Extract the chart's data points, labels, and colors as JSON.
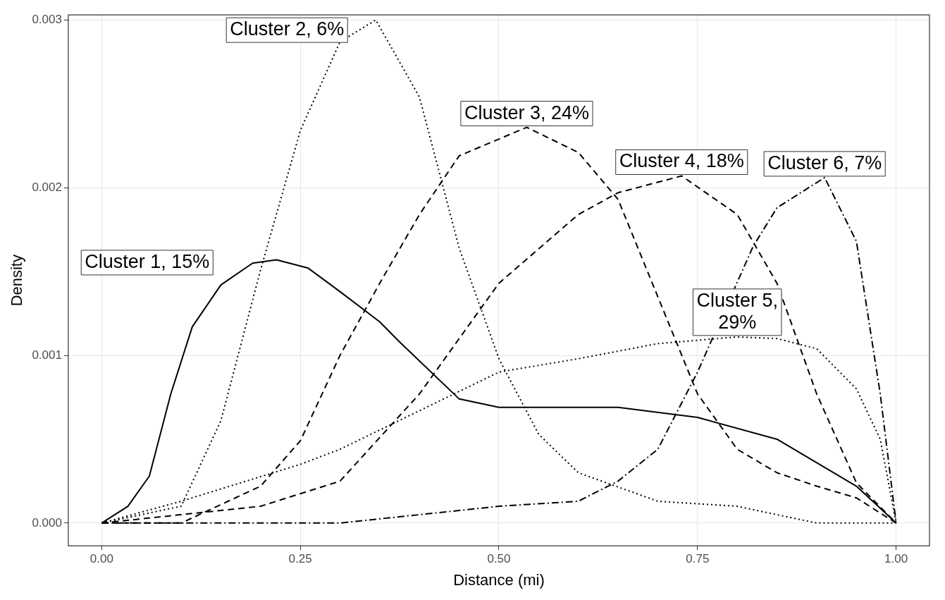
{
  "chart_data": {
    "type": "line",
    "xlabel": "Distance (mi)",
    "ylabel": "Density",
    "xlim": [
      -0.042,
      1.042
    ],
    "ylim": [
      -0.000136,
      0.00303
    ],
    "xticks": [
      {
        "value": 0,
        "label": "0.00"
      },
      {
        "value": 0.25,
        "label": "0.25"
      },
      {
        "value": 0.5,
        "label": "0.50"
      },
      {
        "value": 0.75,
        "label": "0.75"
      },
      {
        "value": 1,
        "label": "1.00"
      }
    ],
    "yticks": [
      {
        "value": 0,
        "label": "0.000"
      },
      {
        "value": 0.001,
        "label": "0.001"
      },
      {
        "value": 0.002,
        "label": "0.002"
      },
      {
        "value": 0.003,
        "label": "0.003"
      }
    ],
    "grid": true,
    "marker": "none",
    "legend": false,
    "series": [
      {
        "name": "Cluster 1, 15%",
        "color": "#000000",
        "line_style": "solid",
        "x": [
          0,
          0.033,
          0.06,
          0.087,
          0.114,
          0.15,
          0.19,
          0.22,
          0.26,
          0.3,
          0.35,
          0.375,
          0.45,
          0.5,
          0.6,
          0.65,
          0.75,
          0.85,
          0.95,
          1
        ],
        "values": [
          0,
          0.0001,
          0.00028,
          0.00077,
          0.00117,
          0.00142,
          0.00155,
          0.00157,
          0.00152,
          0.00138,
          0.0012,
          0.00108,
          0.00074,
          0.00069,
          0.00069,
          0.00069,
          0.00063,
          0.0005,
          0.00022,
          0
        ]
      },
      {
        "name": "Cluster 2, 6%",
        "color": "#000000",
        "line_style": "dotted",
        "x": [
          0,
          0.1,
          0.15,
          0.2,
          0.25,
          0.3,
          0.345,
          0.4,
          0.45,
          0.5,
          0.55,
          0.6,
          0.7,
          0.8,
          0.9,
          1
        ],
        "values": [
          0,
          0.0001,
          0.00061,
          0.00151,
          0.00234,
          0.00287,
          0.003,
          0.00254,
          0.00164,
          0.00098,
          0.00053,
          0.0003,
          0.00013,
          0.0001,
          0,
          0
        ]
      },
      {
        "name": "Cluster 3, 24%",
        "color": "#000000",
        "line_style": "dashed",
        "x": [
          0,
          0.1,
          0.2,
          0.25,
          0.3,
          0.35,
          0.4,
          0.45,
          0.535,
          0.6,
          0.65,
          0.7,
          0.75,
          0.8,
          0.85,
          0.9,
          0.95,
          1
        ],
        "values": [
          0,
          0,
          0.00022,
          0.00049,
          0.001,
          0.00143,
          0.00184,
          0.00219,
          0.00236,
          0.00221,
          0.00193,
          0.00135,
          0.00077,
          0.00044,
          0.0003,
          0.00022,
          0.00015,
          0
        ]
      },
      {
        "name": "Cluster 4, 18%",
        "color": "#000000",
        "line_style": "dashed",
        "x": [
          0,
          0.2,
          0.3,
          0.4,
          0.5,
          0.6,
          0.65,
          0.73,
          0.8,
          0.85,
          0.9,
          0.95,
          1
        ],
        "values": [
          0,
          0.0001,
          0.00025,
          0.00077,
          0.00143,
          0.00184,
          0.00197,
          0.00207,
          0.00184,
          0.00143,
          0.00077,
          0.00024,
          0
        ]
      },
      {
        "name": "Cluster 5,\n29%",
        "color": "#000000",
        "line_style": "dotted",
        "x": [
          0,
          0.1,
          0.25,
          0.3,
          0.5,
          0.6,
          0.7,
          0.8,
          0.85,
          0.9,
          0.95,
          0.98,
          1
        ],
        "values": [
          0,
          0.00013,
          0.00035,
          0.00044,
          0.0009,
          0.00098,
          0.00107,
          0.00111,
          0.0011,
          0.00104,
          0.0008,
          0.0005,
          0
        ]
      },
      {
        "name": "Cluster 6, 7%",
        "color": "#000000",
        "line_style": "dashdot",
        "x": [
          0,
          0.3,
          0.5,
          0.6,
          0.65,
          0.7,
          0.75,
          0.82,
          0.85,
          0.91,
          0.95,
          0.98,
          1
        ],
        "values": [
          0,
          0,
          0.0001,
          0.00013,
          0.00025,
          0.00044,
          0.0009,
          0.00165,
          0.00188,
          0.00206,
          0.00168,
          0.00077,
          0
        ]
      }
    ]
  }
}
